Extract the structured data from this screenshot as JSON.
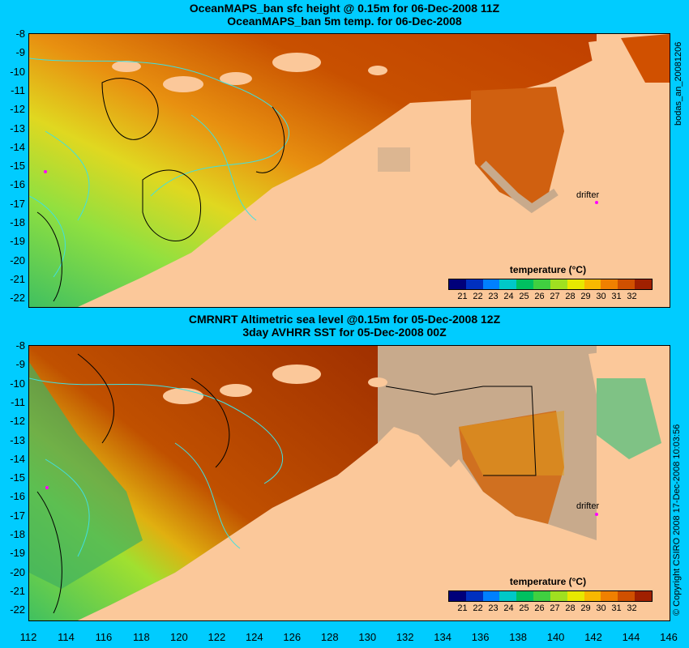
{
  "panel_top": {
    "title_line1": "OceanMAPS_ban sfc height @ 0.15m for 06-Dec-2008 11Z",
    "title_line2": "OceanMAPS_ban 5m temp. for 06-Dec-2008",
    "drifter_label": "drifter",
    "side_label": "bodas_an_20081206"
  },
  "panel_bottom": {
    "title_line1": "CMRNRT Altimetric sea level  @0.15m  for 05-Dec-2008 12Z",
    "title_line2": "3day AVHRR SST for 05-Dec-2008 00Z",
    "drifter_label": "drifter",
    "side_label": "© Copyright CSIRO 2008  17-Dec-2008 10:03:56"
  },
  "legend": {
    "title": "temperature (°C)",
    "ticks": [
      "21",
      "22",
      "23",
      "24",
      "25",
      "26",
      "27",
      "28",
      "29",
      "30",
      "31",
      "32"
    ],
    "colors": [
      "#00007a",
      "#0030c0",
      "#0080ff",
      "#00c8c8",
      "#00c060",
      "#40d040",
      "#a0e020",
      "#e8e800",
      "#f8b800",
      "#f08000",
      "#d05000",
      "#a02000"
    ]
  },
  "axes": {
    "y_ticks": [
      "-8",
      "-9",
      "-10",
      "-11",
      "-12",
      "-13",
      "-14",
      "-15",
      "-16",
      "-17",
      "-18",
      "-19",
      "-20",
      "-21",
      "-22"
    ],
    "x_ticks": [
      "112",
      "114",
      "116",
      "118",
      "120",
      "122",
      "124",
      "126",
      "128",
      "130",
      "132",
      "134",
      "136",
      "138",
      "140",
      "142",
      "144",
      "146"
    ]
  },
  "colors": {
    "background": "#00ccff",
    "land": "#fbc89a",
    "missing": "#c8aa8c",
    "contour_cyan": "#40e0e0",
    "contour_black": "#000000",
    "drifter_marker": "#ff00ff"
  }
}
